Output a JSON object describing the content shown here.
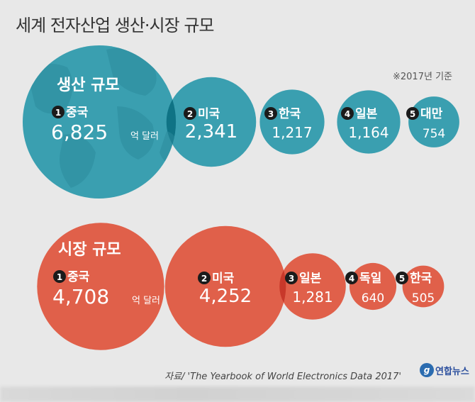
{
  "header": {
    "title": "세계 전자산업 생산·시장 규모"
  },
  "note": "※2017년 기준",
  "footer": {
    "source": "자료/ 'The Yearbook of World Electronics Data 2017'",
    "brand": "연합뉴스",
    "brand_logo": "g"
  },
  "colors": {
    "production": "#3a9fb0",
    "production_overlap": "#0f7385",
    "market": "#e0604a",
    "market_overlap": "#c8382a",
    "background": "#e8e8e8"
  },
  "chart_data": [
    {
      "type": "bubble",
      "title": "생산 규모",
      "unit_label": "억 달러",
      "series": [
        {
          "rank": "1",
          "name": "중국",
          "value": 6825,
          "label": "6,825"
        },
        {
          "rank": "2",
          "name": "미국",
          "value": 2341,
          "label": "2,341"
        },
        {
          "rank": "3",
          "name": "한국",
          "value": 1217,
          "label": "1,217"
        },
        {
          "rank": "4",
          "name": "일본",
          "value": 1164,
          "label": "1,164"
        },
        {
          "rank": "5",
          "name": "대만",
          "value": 754,
          "label": "754"
        }
      ]
    },
    {
      "type": "bubble",
      "title": "시장 규모",
      "unit_label": "억 달러",
      "series": [
        {
          "rank": "1",
          "name": "중국",
          "value": 4708,
          "label": "4,708"
        },
        {
          "rank": "2",
          "name": "미국",
          "value": 4252,
          "label": "4,252"
        },
        {
          "rank": "3",
          "name": "일본",
          "value": 1281,
          "label": "1,281"
        },
        {
          "rank": "4",
          "name": "독일",
          "value": 640,
          "label": "640"
        },
        {
          "rank": "5",
          "name": "한국",
          "value": 505,
          "label": "505"
        }
      ]
    }
  ]
}
